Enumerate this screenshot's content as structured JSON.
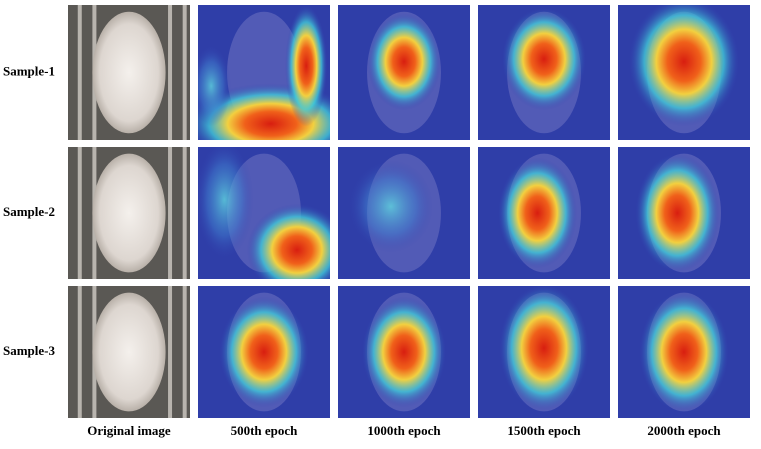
{
  "row_labels": [
    "Sample-1",
    "Sample-2",
    "Sample-3"
  ],
  "column_labels": [
    "Original image",
    "500th epoch",
    "1000th epoch",
    "1500th epoch",
    "2000th epoch"
  ]
}
